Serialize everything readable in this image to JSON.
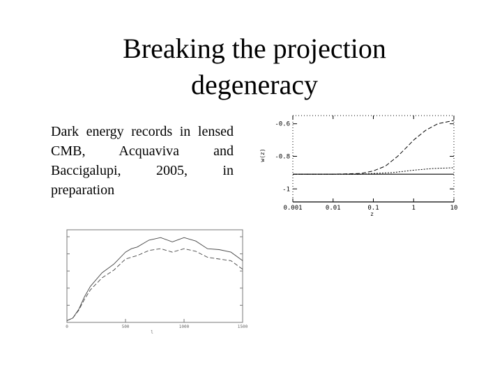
{
  "slide": {
    "title_line1": "Breaking the projection",
    "title_line2": "degeneracy",
    "body": "Dark energy records in lensed CMB, Acquaviva and Baccigalupi, 2005, in preparation"
  },
  "chart_data": [
    {
      "type": "line",
      "title": "",
      "xlabel": "z",
      "ylabel": "w(z)",
      "xscale": "log",
      "xlim": [
        0.001,
        10
      ],
      "ylim": [
        -1.08,
        -0.55
      ],
      "x_ticks": [
        "0.001",
        "0.01",
        "0.1",
        "1",
        "10"
      ],
      "y_ticks": [
        "-0.6",
        "-0.8",
        "-1"
      ],
      "series": [
        {
          "style": "dashed",
          "x": [
            0.001,
            0.01,
            0.05,
            0.1,
            0.2,
            0.4,
            0.7,
            1,
            2,
            4,
            10
          ],
          "y": [
            -0.91,
            -0.91,
            -0.905,
            -0.89,
            -0.86,
            -0.8,
            -0.74,
            -0.7,
            -0.64,
            -0.6,
            -0.58
          ]
        },
        {
          "style": "dotted",
          "x": [
            0.001,
            0.01,
            0.05,
            0.1,
            0.3,
            1,
            3,
            10
          ],
          "y": [
            -0.91,
            -0.91,
            -0.91,
            -0.905,
            -0.9,
            -0.885,
            -0.875,
            -0.87
          ]
        },
        {
          "style": "solid",
          "x": [
            0.001,
            10
          ],
          "y": [
            -0.91,
            -0.91
          ]
        }
      ],
      "grid": false
    },
    {
      "type": "line",
      "title": "",
      "xlabel": "l",
      "ylabel": "",
      "xlim": [
        0,
        1500
      ],
      "x_ticks": [
        "0",
        "500",
        "1000",
        "1500"
      ],
      "series": [
        {
          "style": "solid",
          "x": [
            0,
            50,
            100,
            150,
            200,
            300,
            400,
            500,
            550,
            600,
            700,
            800,
            900,
            1000,
            1100,
            1200,
            1300,
            1400,
            1500
          ],
          "y": [
            0.02,
            0.05,
            0.15,
            0.3,
            0.42,
            0.58,
            0.68,
            0.82,
            0.86,
            0.88,
            0.96,
            0.99,
            0.94,
            0.99,
            0.95,
            0.86,
            0.85,
            0.82,
            0.72
          ]
        },
        {
          "style": "dashed",
          "x": [
            0,
            50,
            100,
            150,
            200,
            300,
            400,
            500,
            550,
            600,
            700,
            800,
            900,
            1000,
            1100,
            1200,
            1300,
            1400,
            1500
          ],
          "y": [
            0.02,
            0.05,
            0.14,
            0.27,
            0.38,
            0.52,
            0.61,
            0.74,
            0.76,
            0.78,
            0.84,
            0.86,
            0.82,
            0.86,
            0.83,
            0.76,
            0.74,
            0.72,
            0.62
          ]
        }
      ],
      "grid": false
    }
  ]
}
